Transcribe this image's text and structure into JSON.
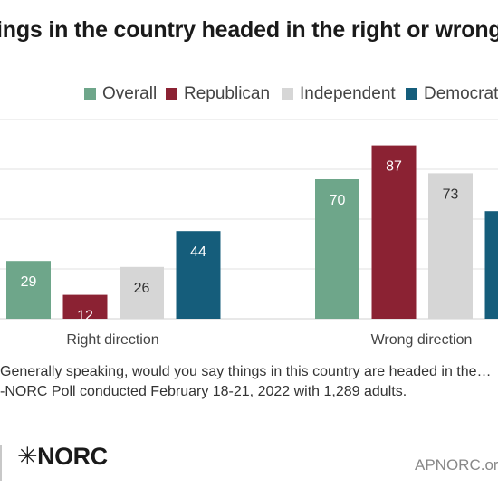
{
  "title": "ings in the country headed in the right or wrong",
  "legend": [
    {
      "label": "Overall",
      "color": "#6ea68a"
    },
    {
      "label": "Republican",
      "color": "#8b2233"
    },
    {
      "label": "Independent",
      "color": "#d6d6d6"
    },
    {
      "label": "Democrat",
      "color": "#155d7b"
    }
  ],
  "notes": {
    "question": "Generally speaking, would you say things in this country are headed in the…",
    "source": "-NORC Poll conducted February 18-21, 2022 with 1,289 adults."
  },
  "logo": {
    "text": "NORC",
    "icon": "asterisk-icon"
  },
  "site": "APNORC.org",
  "chart_data": {
    "type": "bar",
    "categories": [
      "Right direction",
      "Wrong direction"
    ],
    "series": [
      {
        "name": "Overall",
        "values": [
          29,
          70
        ],
        "color": "#6ea68a",
        "label_color": "#ffffff"
      },
      {
        "name": "Republican",
        "values": [
          12,
          87
        ],
        "color": "#8b2233",
        "label_color": "#ffffff"
      },
      {
        "name": "Independent",
        "values": [
          26,
          73
        ],
        "color": "#d6d6d6",
        "label_color": "#333333"
      },
      {
        "name": "Democrat",
        "values": [
          44,
          54
        ],
        "color": "#155d7b",
        "label_color": "#ffffff"
      }
    ],
    "ylim": [
      0,
      100
    ],
    "grid": true,
    "legend_position": "top"
  }
}
